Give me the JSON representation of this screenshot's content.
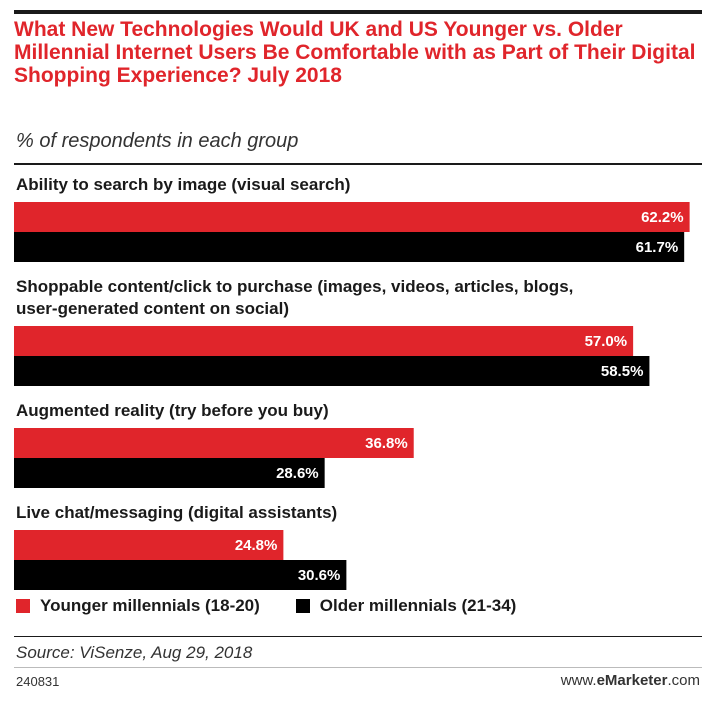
{
  "colors": {
    "series_1": "#e0252b",
    "series_2": "#000000"
  },
  "chart_data": {
    "type": "bar",
    "orientation": "horizontal",
    "title": "What New Technologies Would UK and US Younger vs. Older Millennial Internet Users Be Comfortable with as Part of Their Digital Shopping Experience? July 2018",
    "subtitle": "% of respondents in each group",
    "categories": [
      "Ability to search by image (visual search)",
      "Shoppable content/click to purchase (images, videos, articles, blogs, user-generated content on social)",
      "Augmented reality (try before you buy)",
      "Live chat/messaging (digital assistants)"
    ],
    "series": [
      {
        "name": "Younger millennials (18-20)",
        "values": [
          62.2,
          57.0,
          36.8,
          24.8
        ]
      },
      {
        "name": "Older millennials (21-34)",
        "values": [
          61.7,
          58.5,
          28.6,
          30.6
        ]
      }
    ],
    "value_suffix": "%",
    "grid": false,
    "legend_position": "bottom",
    "source": "Source: ViSenze, Aug 29, 2018",
    "chart_id": "240831",
    "brand": {
      "prefix": "www.",
      "name": "eMarketer",
      "suffix": ".com"
    }
  }
}
